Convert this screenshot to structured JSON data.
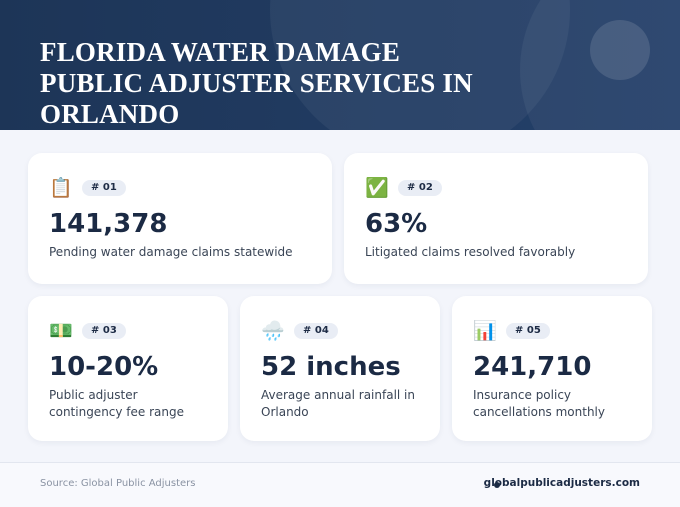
{
  "header": {
    "title": "FLORIDA WATER DAMAGE PUBLIC ADJUSTER SERVICES IN ORLANDO"
  },
  "cards": [
    {
      "icon": "📋",
      "badge": "# 01",
      "value": "141,378",
      "label": "Pending water damage claims statewide"
    },
    {
      "icon": "✅",
      "badge": "# 02",
      "value": "63%",
      "label": "Litigated claims resolved favorably"
    },
    {
      "icon": "💵",
      "badge": "# 03",
      "value": "10-20%",
      "label": "Public adjuster contingency fee range"
    },
    {
      "icon": "🌧️",
      "badge": "# 04",
      "value": "52 inches",
      "label": "Average annual rainfall in Orlando"
    },
    {
      "icon": "📊",
      "badge": "# 05",
      "value": "241,710",
      "label": "Insurance policy cancellations monthly"
    }
  ],
  "footer": {
    "source": "Source: Global Public Adjusters",
    "site": "globalpublicadjusters.com"
  }
}
